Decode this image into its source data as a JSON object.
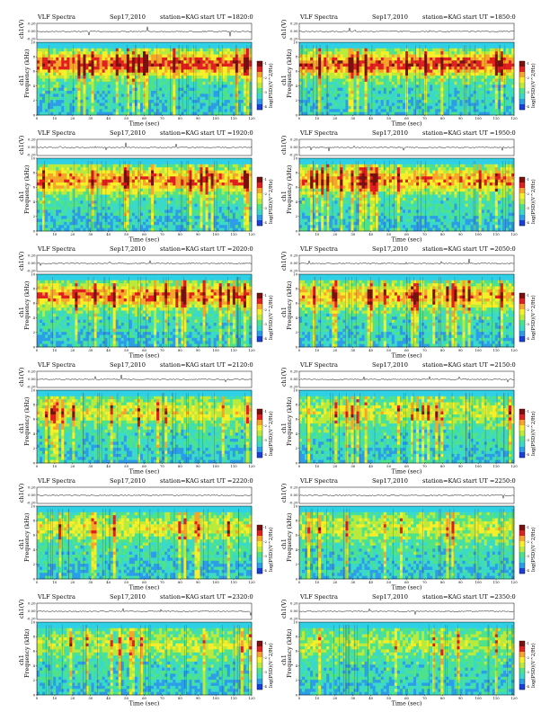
{
  "header_labels": {
    "title": "VLF Spectra",
    "date": "Sep17,2010",
    "station": "station=KAG",
    "start_prefix": "start  UT  ="
  },
  "axis_labels": {
    "trace_ylabel": "ch1(V)",
    "spec_ylabel_channel": "ch1",
    "spec_ylabel": "Frequency  (kHz)",
    "xlabel": "Time (sec)",
    "colorbar_label": "log(PSD)(V^2/Hz)"
  },
  "colors": {
    "spectrogram_scale": [
      "#1a3fd8",
      "#2d9de8",
      "#3ad9c8",
      "#4ee38b",
      "#b9ea3c",
      "#f6ef2a",
      "#f7a52a",
      "#e02020",
      "#7a1010"
    ],
    "top_band": "#2fd0e6",
    "trace": "#000000"
  },
  "chart_data": [
    {
      "type": "heatmap",
      "start_ut": "1820:0",
      "activity": 0.85,
      "xlim": [
        0,
        120
      ],
      "ylim_khz": [
        0,
        10
      ],
      "trace_ylim": [
        -0.2,
        0.2
      ]
    },
    {
      "type": "heatmap",
      "start_ut": "1850:0",
      "activity": 0.85,
      "xlim": [
        0,
        120
      ],
      "ylim_khz": [
        0,
        10
      ],
      "trace_ylim": [
        -0.2,
        0.2
      ]
    },
    {
      "type": "heatmap",
      "start_ut": "1920:0",
      "activity": 0.75,
      "xlim": [
        0,
        120
      ],
      "ylim_khz": [
        0,
        10
      ],
      "trace_ylim": [
        -0.2,
        0.2
      ]
    },
    {
      "type": "heatmap",
      "start_ut": "1950:0",
      "activity": 0.7,
      "xlim": [
        0,
        120
      ],
      "ylim_khz": [
        0,
        10
      ],
      "trace_ylim": [
        -0.2,
        0.2
      ]
    },
    {
      "type": "heatmap",
      "start_ut": "2020:0",
      "activity": 0.75,
      "xlim": [
        0,
        120
      ],
      "ylim_khz": [
        0,
        10
      ],
      "trace_ylim": [
        -0.2,
        0.2
      ]
    },
    {
      "type": "heatmap",
      "start_ut": "2050:0",
      "activity": 0.65,
      "xlim": [
        0,
        120
      ],
      "ylim_khz": [
        0,
        10
      ],
      "trace_ylim": [
        -0.2,
        0.2
      ]
    },
    {
      "type": "heatmap",
      "start_ut": "2120:0",
      "activity": 0.45,
      "xlim": [
        0,
        120
      ],
      "ylim_khz": [
        0,
        10
      ],
      "trace_ylim": [
        -0.2,
        0.2
      ]
    },
    {
      "type": "heatmap",
      "start_ut": "2150:0",
      "activity": 0.4,
      "xlim": [
        0,
        120
      ],
      "ylim_khz": [
        0,
        10
      ],
      "trace_ylim": [
        -0.2,
        0.2
      ]
    },
    {
      "type": "heatmap",
      "start_ut": "2220:0",
      "activity": 0.45,
      "xlim": [
        0,
        120
      ],
      "ylim_khz": [
        0,
        10
      ],
      "trace_ylim": [
        -0.2,
        0.2
      ]
    },
    {
      "type": "heatmap",
      "start_ut": "2250:0",
      "activity": 0.4,
      "xlim": [
        0,
        120
      ],
      "ylim_khz": [
        0,
        10
      ],
      "trace_ylim": [
        -0.2,
        0.2
      ]
    },
    {
      "type": "heatmap",
      "start_ut": "2320:0",
      "activity": 0.35,
      "xlim": [
        0,
        120
      ],
      "ylim_khz": [
        0,
        10
      ],
      "trace_ylim": [
        -0.2,
        0.2
      ]
    },
    {
      "type": "heatmap",
      "start_ut": "2350:0",
      "activity": 0.3,
      "xlim": [
        0,
        120
      ],
      "ylim_khz": [
        0,
        10
      ],
      "trace_ylim": [
        -0.2,
        0.2
      ]
    }
  ],
  "x_ticks": [
    "0",
    "10",
    "20",
    "30",
    "40",
    "50",
    "60",
    "70",
    "80",
    "90",
    "100",
    "110",
    "120"
  ],
  "spec_y_ticks": [
    "0",
    "2",
    "4",
    "6",
    "8",
    "10"
  ],
  "trace_y_ticks": [
    "0.20",
    "0.00",
    "-0.20"
  ],
  "colorbar_ticks": [
    "-1",
    "-2",
    "-3",
    "-4"
  ]
}
